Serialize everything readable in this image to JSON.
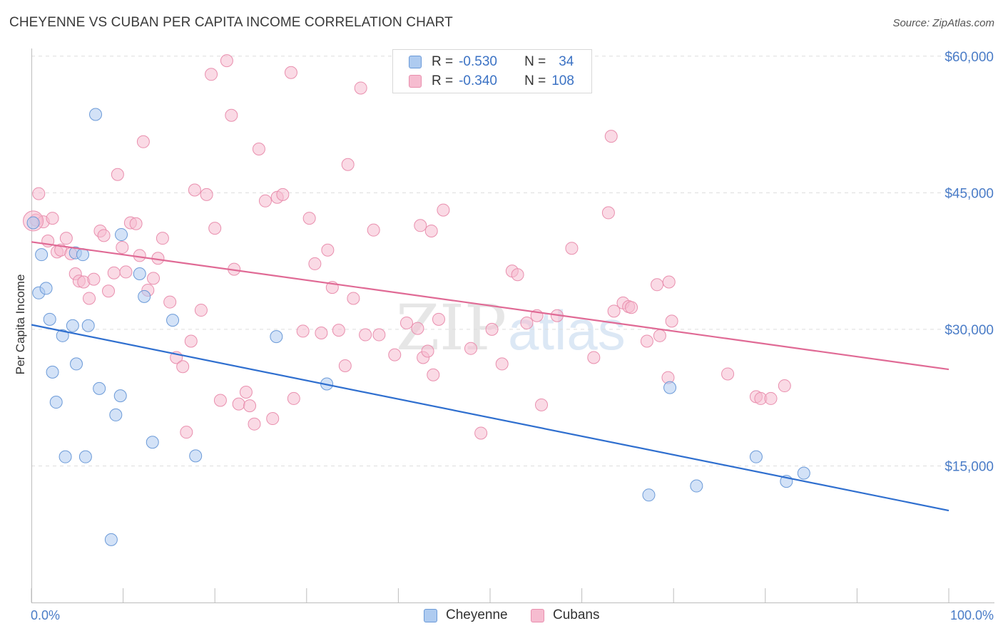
{
  "header": {
    "title": "CHEYENNE VS CUBAN PER CAPITA INCOME CORRELATION CHART",
    "source": "Source: ZipAtlas.com"
  },
  "watermark": {
    "zip": "ZIP",
    "atlas": "atlas"
  },
  "legend": {
    "rows": [
      {
        "r_label": "R =",
        "r_value": "-0.530",
        "n_label": "N =",
        "n_value": "34",
        "color": "#aecbf0"
      },
      {
        "r_label": "R =",
        "r_value": "-0.340",
        "n_label": "N =",
        "n_value": "108",
        "color": "#f6bcd0"
      }
    ]
  },
  "bottom_legend": {
    "series_a": "Cheyenne",
    "series_b": "Cubans"
  },
  "colors": {
    "cheyenne_fill": "#aecbf0",
    "cheyenne_stroke": "#6b9ad8",
    "cheyenne_line": "#2f6fcf",
    "cubans_fill": "#f6bcd0",
    "cubans_stroke": "#e98fae",
    "cubans_line": "#e06a95",
    "tick_text": "#4a7cc7"
  },
  "chart_data": {
    "type": "scatter",
    "title": "CHEYENNE VS CUBAN PER CAPITA INCOME CORRELATION CHART",
    "xlabel": "",
    "ylabel": "Per Capita Income",
    "xlim": [
      0,
      100
    ],
    "ylim": [
      0,
      61500
    ],
    "y_ticks": [
      {
        "value": 15000,
        "label": "$15,000"
      },
      {
        "value": 30000,
        "label": "$30,000"
      },
      {
        "value": 45000,
        "label": "$45,000"
      },
      {
        "value": 60000,
        "label": "$60,000"
      }
    ],
    "x_tick_labels": {
      "min": "0.0%",
      "max": "100.0%"
    },
    "series": [
      {
        "name": "Cheyenne",
        "r": -0.53,
        "n": 34,
        "trend": {
          "x": [
            0,
            100
          ],
          "y": [
            30500,
            10100
          ]
        },
        "points": [
          [
            0.2,
            41700
          ],
          [
            0.8,
            34000
          ],
          [
            1.1,
            38200
          ],
          [
            1.6,
            34500
          ],
          [
            2.0,
            31100
          ],
          [
            2.3,
            25300
          ],
          [
            2.7,
            22000
          ],
          [
            3.4,
            29300
          ],
          [
            3.7,
            16000
          ],
          [
            4.5,
            30400
          ],
          [
            4.8,
            38400
          ],
          [
            4.9,
            26200
          ],
          [
            5.6,
            38200
          ],
          [
            5.9,
            16000
          ],
          [
            6.2,
            30400
          ],
          [
            7.0,
            53600
          ],
          [
            7.4,
            23500
          ],
          [
            8.7,
            6900
          ],
          [
            9.2,
            20600
          ],
          [
            9.7,
            22700
          ],
          [
            9.8,
            40400
          ],
          [
            11.8,
            36100
          ],
          [
            12.3,
            33600
          ],
          [
            13.2,
            17600
          ],
          [
            15.4,
            31000
          ],
          [
            17.9,
            16100
          ],
          [
            26.7,
            29200
          ],
          [
            32.2,
            24000
          ],
          [
            67.3,
            11800
          ],
          [
            69.6,
            23600
          ],
          [
            72.5,
            12800
          ],
          [
            79.0,
            16000
          ],
          [
            82.3,
            13300
          ],
          [
            84.2,
            14200
          ]
        ]
      },
      {
        "name": "Cubans",
        "r": -0.34,
        "n": 108,
        "trend": {
          "x": [
            0,
            100
          ],
          "y": [
            39600,
            25600
          ]
        },
        "points": [
          [
            0.5,
            42000
          ],
          [
            0.8,
            44900
          ],
          [
            1.3,
            41800
          ],
          [
            1.8,
            39700
          ],
          [
            2.3,
            42200
          ],
          [
            2.8,
            38500
          ],
          [
            3.2,
            38700
          ],
          [
            3.8,
            40000
          ],
          [
            4.3,
            38300
          ],
          [
            4.8,
            36100
          ],
          [
            5.2,
            35300
          ],
          [
            5.7,
            35200
          ],
          [
            6.3,
            33400
          ],
          [
            6.8,
            35500
          ],
          [
            7.5,
            40800
          ],
          [
            7.9,
            40300
          ],
          [
            8.4,
            34200
          ],
          [
            9.0,
            36200
          ],
          [
            9.4,
            47000
          ],
          [
            9.9,
            39000
          ],
          [
            10.3,
            36300
          ],
          [
            10.8,
            41700
          ],
          [
            11.4,
            41600
          ],
          [
            11.8,
            38100
          ],
          [
            12.2,
            50600
          ],
          [
            12.7,
            34300
          ],
          [
            13.3,
            35600
          ],
          [
            13.8,
            37800
          ],
          [
            14.3,
            40000
          ],
          [
            15.1,
            33000
          ],
          [
            15.8,
            26900
          ],
          [
            16.5,
            25900
          ],
          [
            16.9,
            18700
          ],
          [
            17.4,
            28700
          ],
          [
            17.8,
            45300
          ],
          [
            18.5,
            32100
          ],
          [
            19.1,
            44800
          ],
          [
            19.6,
            58000
          ],
          [
            20.0,
            41100
          ],
          [
            20.6,
            22200
          ],
          [
            21.3,
            59500
          ],
          [
            21.8,
            53500
          ],
          [
            22.1,
            36600
          ],
          [
            22.6,
            21800
          ],
          [
            23.4,
            23100
          ],
          [
            23.8,
            21600
          ],
          [
            24.3,
            19600
          ],
          [
            24.8,
            49800
          ],
          [
            25.5,
            44100
          ],
          [
            26.3,
            20200
          ],
          [
            26.8,
            44500
          ],
          [
            27.4,
            44800
          ],
          [
            28.3,
            58200
          ],
          [
            28.6,
            22400
          ],
          [
            29.6,
            29800
          ],
          [
            30.3,
            42200
          ],
          [
            30.9,
            37200
          ],
          [
            31.6,
            29600
          ],
          [
            32.3,
            38700
          ],
          [
            32.8,
            34600
          ],
          [
            33.5,
            29900
          ],
          [
            34.2,
            26000
          ],
          [
            34.5,
            48100
          ],
          [
            35.1,
            33400
          ],
          [
            35.9,
            56500
          ],
          [
            36.4,
            29400
          ],
          [
            37.3,
            40900
          ],
          [
            37.9,
            29400
          ],
          [
            39.6,
            27200
          ],
          [
            40.9,
            30700
          ],
          [
            42.1,
            30100
          ],
          [
            42.4,
            41400
          ],
          [
            42.7,
            26900
          ],
          [
            43.2,
            27600
          ],
          [
            43.6,
            40800
          ],
          [
            43.8,
            25000
          ],
          [
            44.4,
            31100
          ],
          [
            44.9,
            43100
          ],
          [
            47.9,
            27900
          ],
          [
            49.0,
            18600
          ],
          [
            50.2,
            30000
          ],
          [
            51.3,
            26200
          ],
          [
            52.4,
            36400
          ],
          [
            53.0,
            36000
          ],
          [
            54.0,
            30700
          ],
          [
            55.1,
            31500
          ],
          [
            55.6,
            21700
          ],
          [
            57.3,
            31500
          ],
          [
            58.9,
            38900
          ],
          [
            61.3,
            26900
          ],
          [
            62.9,
            42800
          ],
          [
            63.2,
            51200
          ],
          [
            63.5,
            32000
          ],
          [
            64.5,
            32900
          ],
          [
            65.1,
            32500
          ],
          [
            65.4,
            32400
          ],
          [
            67.1,
            28700
          ],
          [
            68.2,
            34900
          ],
          [
            68.5,
            29300
          ],
          [
            69.4,
            24700
          ],
          [
            69.5,
            35200
          ],
          [
            69.8,
            30900
          ],
          [
            75.9,
            25100
          ],
          [
            79.0,
            22600
          ],
          [
            79.5,
            22400
          ],
          [
            80.6,
            22400
          ],
          [
            82.1,
            23800
          ],
          [
            0.2,
            41900
          ]
        ]
      }
    ]
  }
}
